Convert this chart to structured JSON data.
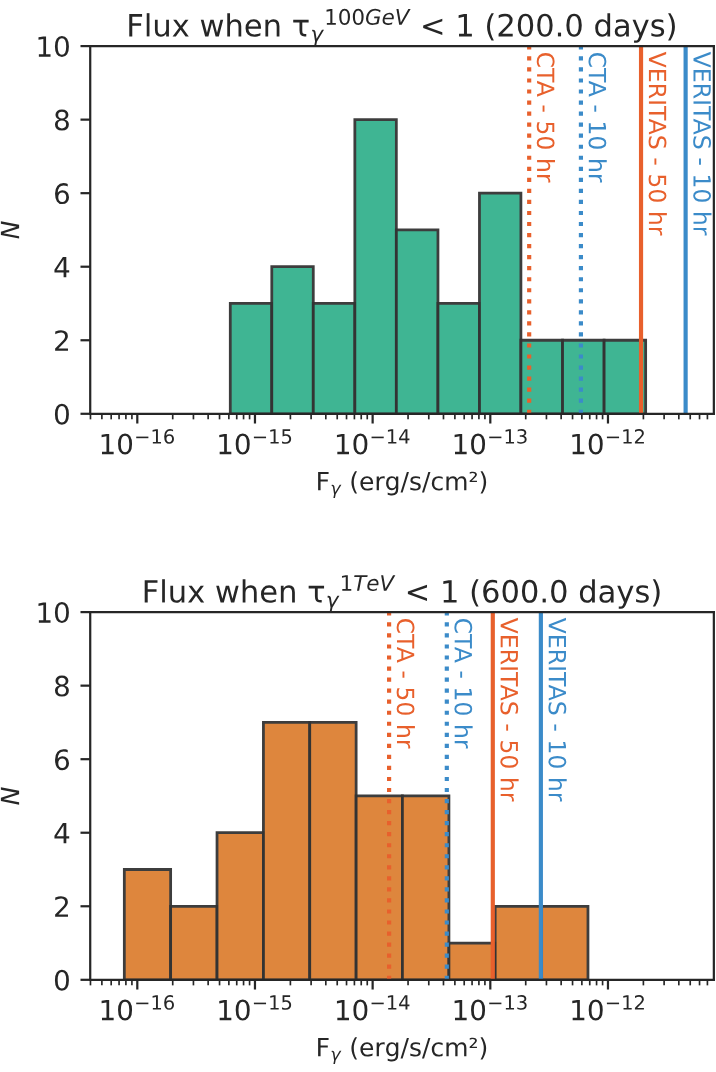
{
  "chart_data": [
    {
      "type": "histogram",
      "title": "Flux when τ$_{γ}$$^{100GeV}$ < 1 (200.0 days)",
      "xlabel": "F$_{γ}$ (erg/s/cm²)",
      "ylabel": "N",
      "log": "x",
      "color": "#35b28e",
      "bins": [
        6.17e-16,
        1.39e-15,
        3.13e-15,
        7.06e-15,
        1.59e-14,
        3.59e-14,
        8.09e-14,
        1.82e-13,
        4.11e-13,
        9.27e-13,
        2.09e-12
      ],
      "values": [
        3,
        4,
        3,
        8,
        5,
        3,
        6,
        2,
        2,
        2
      ],
      "xlim": [
        3.98e-17,
        7.94e-12
      ],
      "ylim": [
        0,
        10
      ],
      "yticks": [
        0,
        2,
        4,
        6,
        8,
        10
      ],
      "xticks": [
        {
          "value": 1e-16,
          "label": "10$^{−16}$"
        },
        {
          "value": 1e-15,
          "label": "10$^{−15}$"
        },
        {
          "value": 1e-14,
          "label": "10$^{−14}$"
        },
        {
          "value": 1e-13,
          "label": "10$^{−13}$"
        },
        {
          "value": 1e-12,
          "label": "10$^{−12}$"
        }
      ],
      "ref_lines": [
        {
          "axis": "x",
          "value": 2.14e-13,
          "label": "CTA - 50 hr",
          "color": "#e8602c",
          "line_style": "dotted"
        },
        {
          "axis": "x",
          "value": 5.89e-13,
          "label": "CTA - 10 hr",
          "color": "#3b8bc9",
          "line_style": "dotted"
        },
        {
          "axis": "x",
          "value": 1.91e-12,
          "label": "VERITAS - 50 hr",
          "color": "#e8602c",
          "line_style": "solid"
        },
        {
          "axis": "x",
          "value": 4.57e-12,
          "label": "VERITAS - 10 hr",
          "color": "#3b8bc9",
          "line_style": "solid"
        }
      ]
    },
    {
      "type": "histogram",
      "title": "Flux when τ$_{γ}$$^{1TeV}$ < 1 (600.0 days)",
      "xlabel": "F$_{γ}$ (erg/s/cm²)",
      "ylabel": "N",
      "log": "x",
      "color": "#dd8033",
      "bins": [
        7.76e-17,
        1.92e-16,
        4.76e-16,
        1.18e-15,
        2.92e-15,
        7.24e-15,
        1.79e-14,
        4.45e-14,
        1.1e-13,
        2.73e-13,
        6.76e-13
      ],
      "values": [
        3,
        2,
        4,
        7,
        7,
        5,
        5,
        1,
        2,
        2
      ],
      "xlim": [
        3.98e-17,
        7.94e-12
      ],
      "ylim": [
        0,
        10
      ],
      "yticks": [
        0,
        2,
        4,
        6,
        8,
        10
      ],
      "xticks": [
        {
          "value": 1e-16,
          "label": "10$^{−16}$"
        },
        {
          "value": 1e-15,
          "label": "10$^{−15}$"
        },
        {
          "value": 1e-14,
          "label": "10$^{−14}$"
        },
        {
          "value": 1e-13,
          "label": "10$^{−13}$"
        },
        {
          "value": 1e-12,
          "label": "10$^{−12}$"
        }
      ],
      "ref_lines": [
        {
          "axis": "x",
          "value": 1.38e-14,
          "label": "CTA - 50 hr",
          "color": "#e8602c",
          "line_style": "dotted"
        },
        {
          "axis": "x",
          "value": 4.27e-14,
          "label": "CTA - 10 hr",
          "color": "#3b8bc9",
          "line_style": "dotted"
        },
        {
          "axis": "x",
          "value": 1.05e-13,
          "label": "VERITAS - 50 hr",
          "color": "#e8602c",
          "line_style": "solid"
        },
        {
          "axis": "x",
          "value": 2.69e-13,
          "label": "VERITAS - 10 hr",
          "color": "#3b8bc9",
          "line_style": "solid"
        }
      ]
    }
  ]
}
